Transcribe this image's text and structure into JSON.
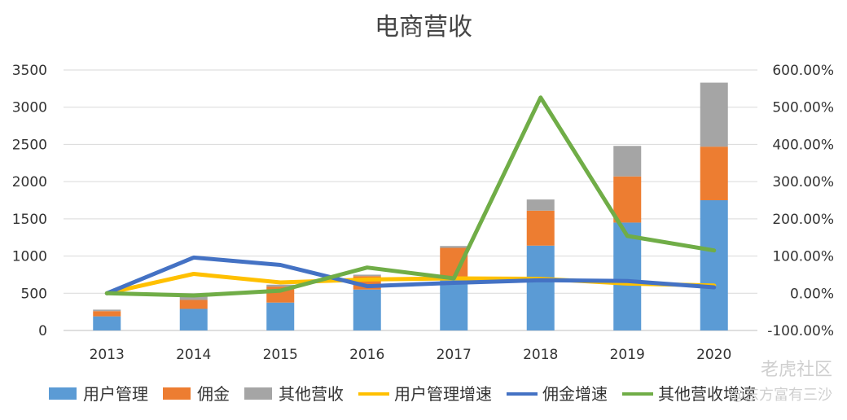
{
  "chart_data": {
    "type": "bar",
    "title": "电商营收",
    "categories": [
      "2013",
      "2014",
      "2015",
      "2016",
      "2017",
      "2018",
      "2019",
      "2020"
    ],
    "stacked_series": [
      {
        "name": "用户管理",
        "color": "#5b9bd5",
        "values": [
          190,
          290,
          375,
          550,
          700,
          1140,
          1450,
          1750
        ]
      },
      {
        "name": "佣金",
        "color": "#ed7d31",
        "values": [
          70,
          120,
          215,
          180,
          410,
          470,
          620,
          720
        ]
      },
      {
        "name": "其他营收",
        "color": "#a5a5a5",
        "values": [
          20,
          60,
          25,
          20,
          25,
          150,
          410,
          860
        ]
      }
    ],
    "line_series": [
      {
        "name": "用户管理增速",
        "color": "#ffc000",
        "values": [
          0,
          52,
          29,
          37,
          40,
          39,
          26,
          21
        ]
      },
      {
        "name": "佣金增速",
        "color": "#4472c4",
        "values": [
          0,
          96,
          76,
          19,
          28,
          35,
          33,
          16
        ]
      },
      {
        "name": "其他营收增速",
        "color": "#70ad47",
        "values": [
          0,
          -6,
          7,
          69,
          40,
          526,
          154,
          115
        ]
      }
    ],
    "left_axis": {
      "ylim": [
        0,
        3500
      ],
      "ticks": [
        "0",
        "500",
        "1000",
        "1500",
        "2000",
        "2500",
        "3000",
        "3500"
      ]
    },
    "right_axis": {
      "ylim": [
        -100,
        600
      ],
      "ticks": [
        "-100.00%",
        "0.00%",
        "100.00%",
        "200.00%",
        "300.00%",
        "400.00%",
        "500.00%",
        "600.00%"
      ]
    },
    "grid": true,
    "legend_position": "bottom"
  },
  "watermark": {
    "brand": "老虎社区",
    "author": "@东方富有三沙"
  }
}
